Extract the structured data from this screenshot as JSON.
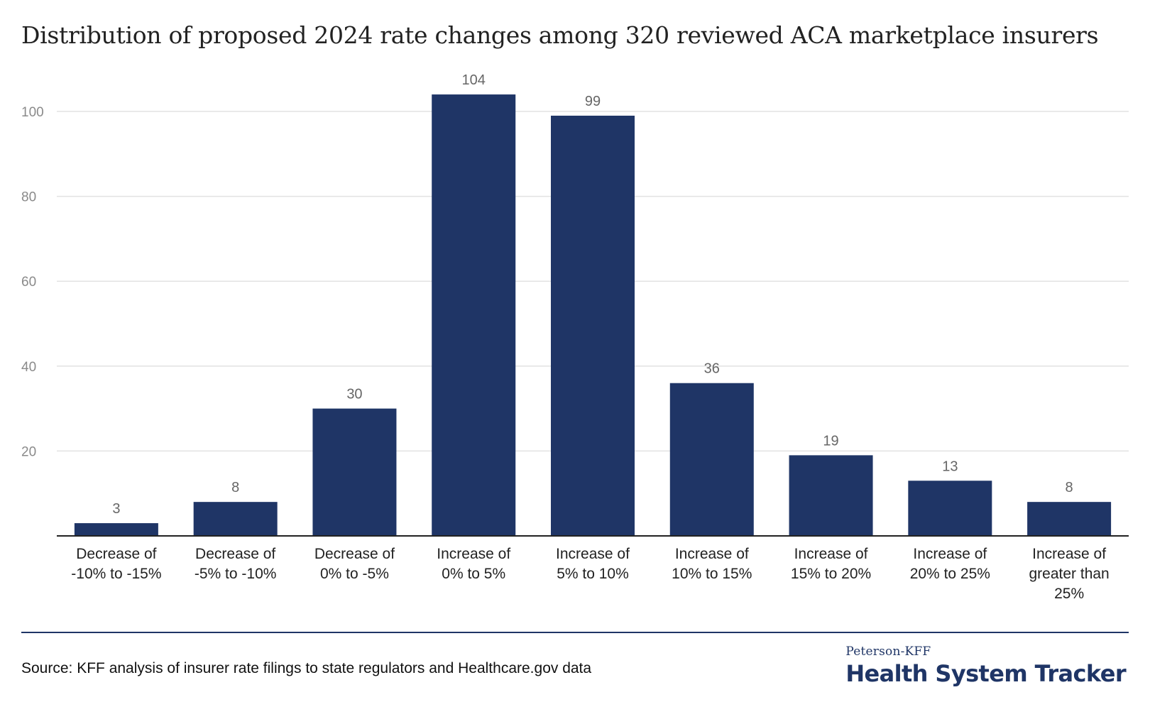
{
  "chart_data": {
    "type": "bar",
    "title": "Distribution of proposed 2024 rate changes among 320 reviewed ACA marketplace insurers",
    "categories": [
      [
        "Decrease of",
        "-10% to -15%"
      ],
      [
        "Decrease of",
        "-5% to -10%"
      ],
      [
        "Decrease of",
        "0% to -5%"
      ],
      [
        "Increase of",
        "0% to 5%"
      ],
      [
        "Increase of",
        "5% to 10%"
      ],
      [
        "Increase of",
        "10% to 15%"
      ],
      [
        "Increase of",
        "15% to 20%"
      ],
      [
        "Increase of",
        "20% to 25%"
      ],
      [
        "Increase of",
        "greater than",
        "25%"
      ]
    ],
    "values": [
      3,
      8,
      30,
      104,
      99,
      36,
      19,
      13,
      8
    ],
    "yticks": [
      20,
      40,
      60,
      80,
      100
    ],
    "ylim": [
      0,
      110
    ],
    "grid": true,
    "bar_color": "#1f3566",
    "xlabel": "",
    "ylabel": ""
  },
  "footer": {
    "source": "Source: KFF analysis of insurer rate filings to state regulators and Healthcare.gov data",
    "logo_top": "Peterson-KFF",
    "logo_main": "Health System Tracker"
  }
}
